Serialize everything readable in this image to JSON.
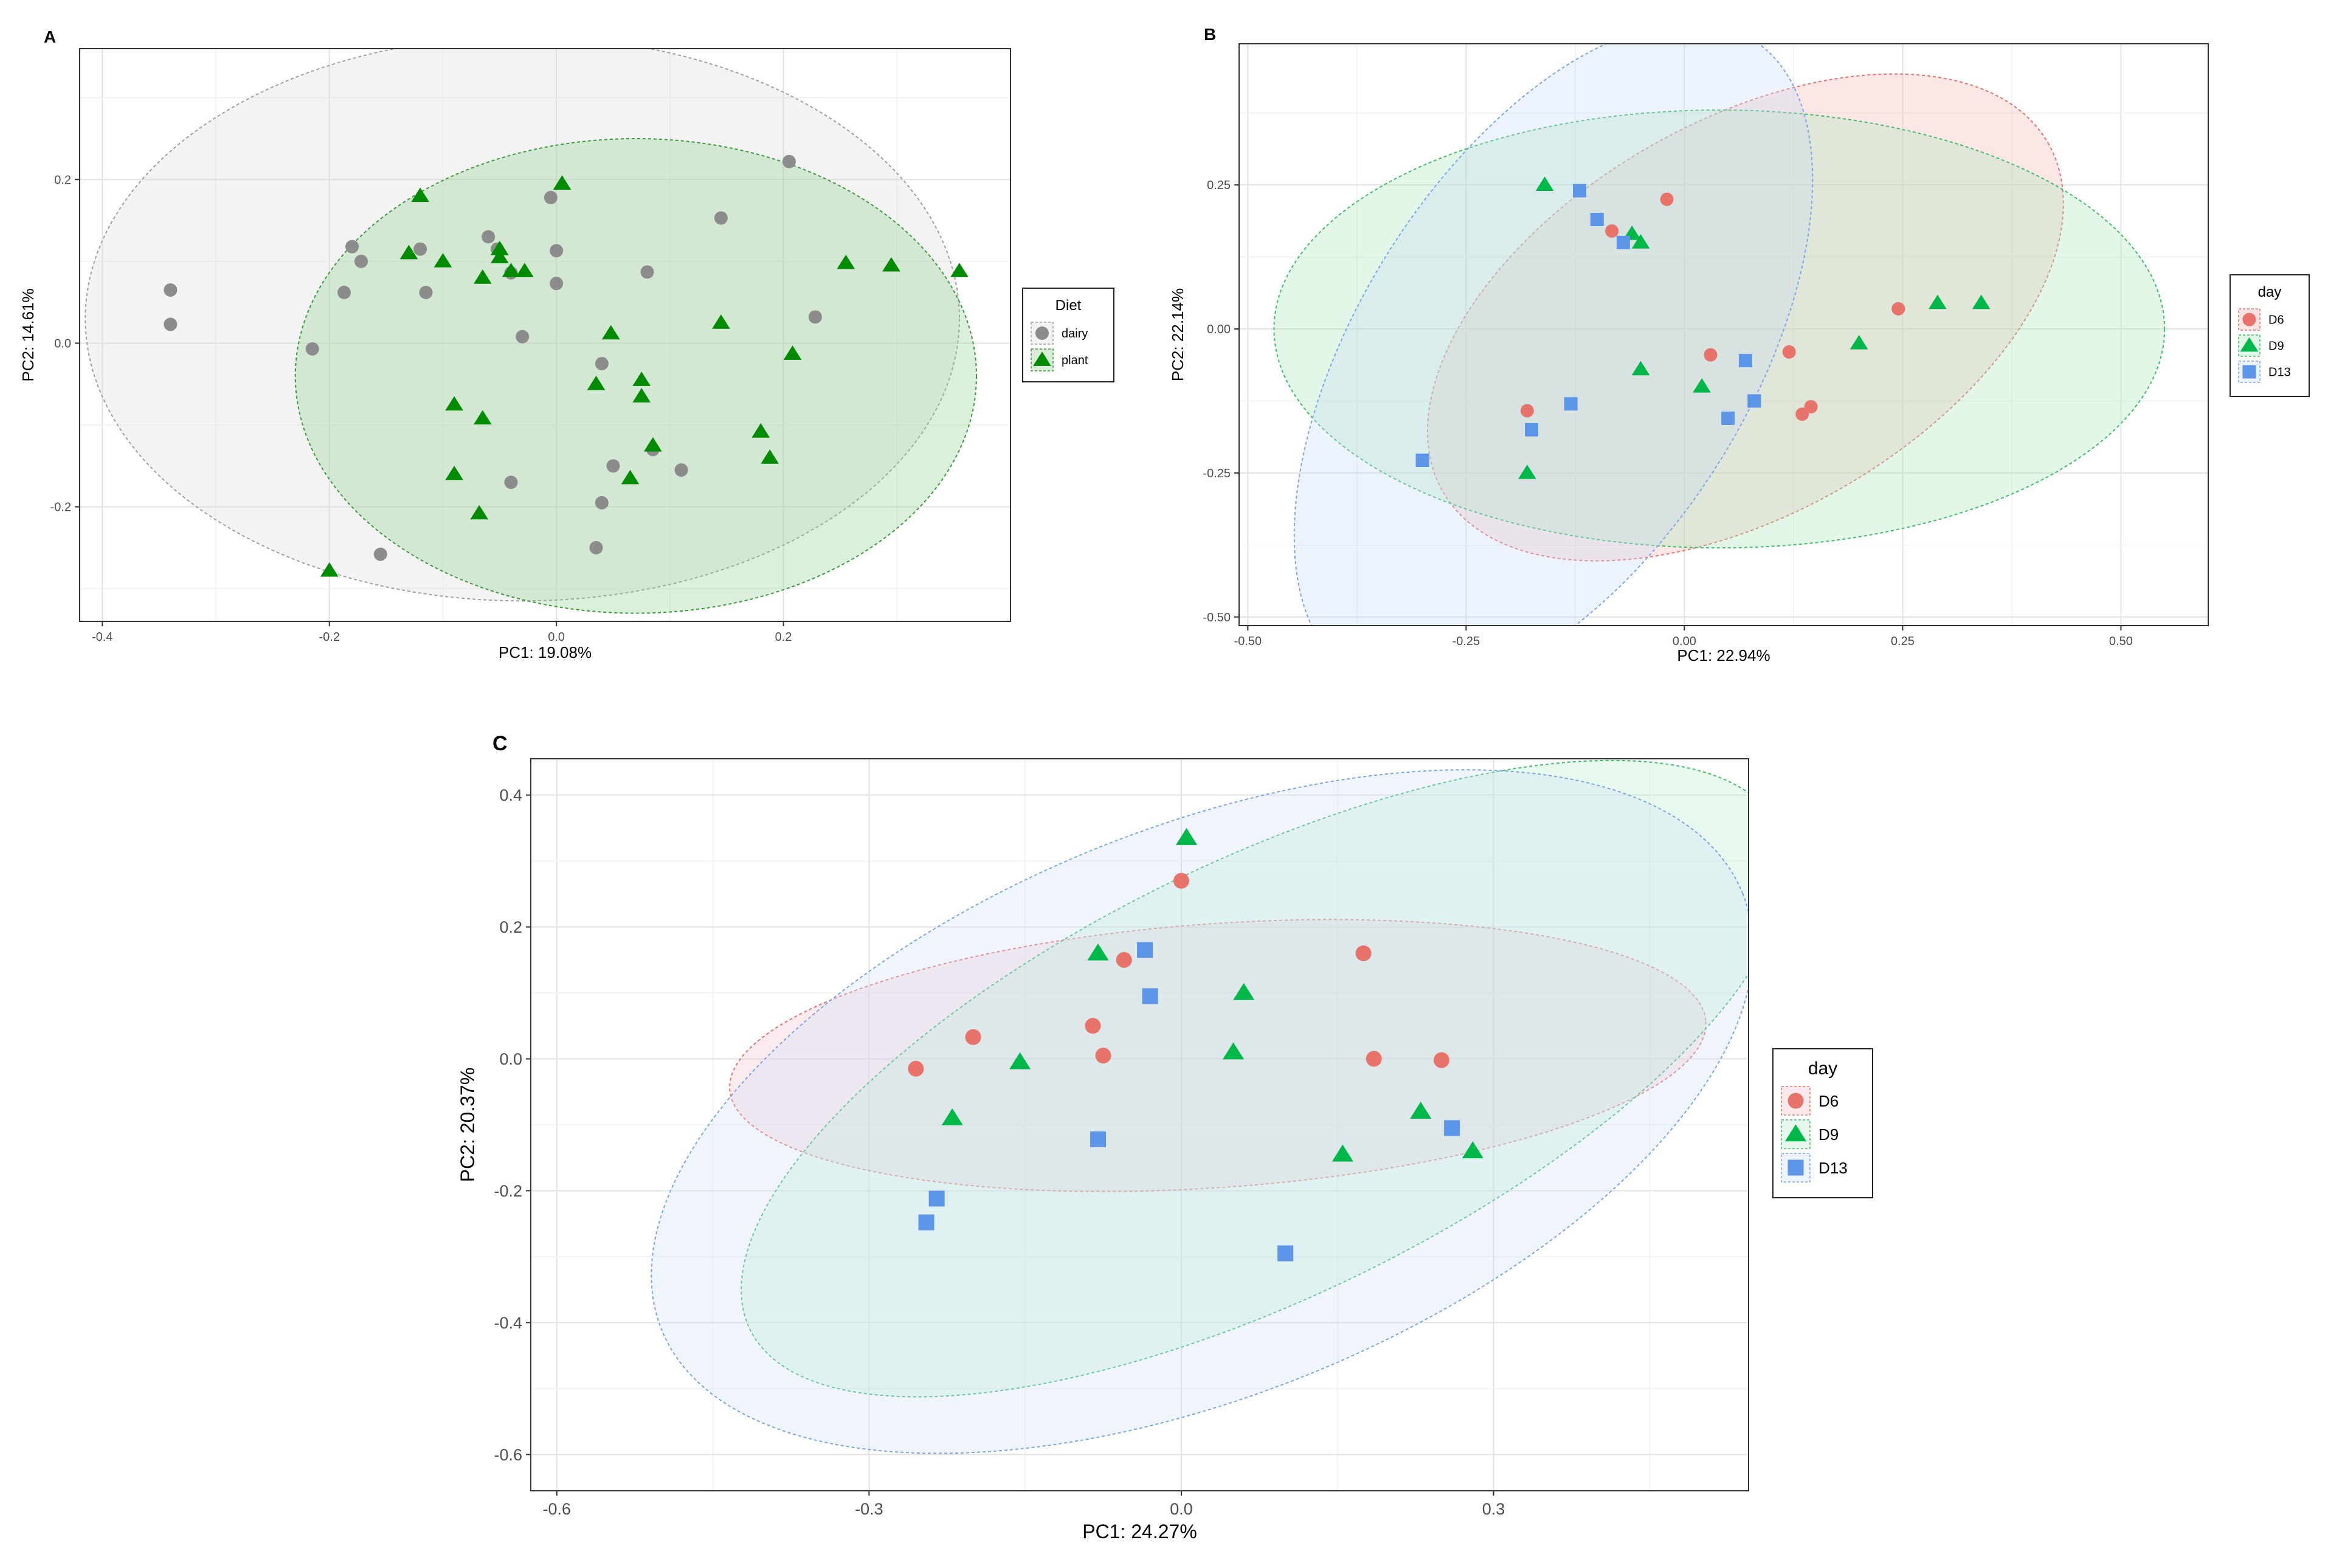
{
  "chart_data": [
    {
      "id": "A",
      "type": "scatter",
      "panel_label": "A",
      "xlabel": "PC1: 19.08%",
      "ylabel": "PC2: 14.61%",
      "xlim": [
        -0.42,
        0.4
      ],
      "ylim": [
        -0.34,
        0.36
      ],
      "xticks": [
        -0.4,
        -0.2,
        0.0,
        0.2
      ],
      "xtick_labels": [
        "-0.4",
        "-0.2",
        "0.0",
        "0.2"
      ],
      "yticks": [
        -0.2,
        0.0,
        0.2
      ],
      "ytick_labels": [
        "-0.2",
        "0.0",
        "0.2"
      ],
      "grid": true,
      "legend": {
        "title": "Diet",
        "position": "right"
      },
      "series": [
        {
          "name": "dairy",
          "marker": "circle",
          "color": "#8c8c8c",
          "fill": "#d9d9d9",
          "border": "#a0a0a0",
          "ellipse": {
            "cx": -0.03,
            "cy": 0.03,
            "rx": 0.385,
            "ry": 0.345,
            "angle": 0
          },
          "points": [
            [
              -0.34,
              0.065
            ],
            [
              -0.34,
              0.023
            ],
            [
              -0.215,
              -0.007
            ],
            [
              -0.18,
              0.118
            ],
            [
              -0.172,
              0.1
            ],
            [
              -0.187,
              0.062
            ],
            [
              -0.12,
              0.115
            ],
            [
              -0.115,
              0.062
            ],
            [
              -0.06,
              0.13
            ],
            [
              -0.052,
              0.115
            ],
            [
              -0.04,
              0.086
            ],
            [
              -0.03,
              0.008
            ],
            [
              -0.04,
              -0.17
            ],
            [
              -0.005,
              0.178
            ],
            [
              0.0,
              0.113
            ],
            [
              0.0,
              0.073
            ],
            [
              0.04,
              -0.025
            ],
            [
              0.05,
              -0.15
            ],
            [
              0.04,
              -0.195
            ],
            [
              0.08,
              0.087
            ],
            [
              0.085,
              -0.13
            ],
            [
              0.11,
              -0.155
            ],
            [
              0.145,
              0.153
            ],
            [
              0.205,
              0.222
            ],
            [
              0.228,
              0.032
            ],
            [
              0.035,
              -0.25
            ],
            [
              -0.155,
              -0.258
            ]
          ]
        },
        {
          "name": "plant",
          "marker": "triangle",
          "color": "#008b00",
          "fill": "#8fcf8f",
          "border": "#3c9c3c",
          "ellipse": {
            "cx": 0.07,
            "cy": -0.04,
            "rx": 0.3,
            "ry": 0.29,
            "angle": 0
          },
          "points": [
            [
              -0.12,
              0.18
            ],
            [
              0.005,
              0.195
            ],
            [
              -0.13,
              0.11
            ],
            [
              -0.1,
              0.1
            ],
            [
              -0.065,
              0.08
            ],
            [
              -0.05,
              0.115
            ],
            [
              -0.05,
              0.105
            ],
            [
              -0.04,
              0.088
            ],
            [
              -0.028,
              0.088
            ],
            [
              0.048,
              0.012
            ],
            [
              0.035,
              -0.05
            ],
            [
              0.075,
              -0.045
            ],
            [
              0.075,
              -0.065
            ],
            [
              -0.09,
              -0.075
            ],
            [
              -0.065,
              -0.092
            ],
            [
              -0.09,
              -0.16
            ],
            [
              -0.068,
              -0.208
            ],
            [
              0.065,
              -0.165
            ],
            [
              0.085,
              -0.125
            ],
            [
              0.145,
              0.025
            ],
            [
              0.18,
              -0.108
            ],
            [
              0.188,
              -0.14
            ],
            [
              0.208,
              -0.013
            ],
            [
              0.255,
              0.098
            ],
            [
              0.295,
              0.095
            ],
            [
              0.355,
              0.088
            ],
            [
              -0.2,
              -0.278
            ]
          ]
        }
      ]
    },
    {
      "id": "B",
      "type": "scatter",
      "panel_label": "B",
      "xlabel": "PC1: 22.94%",
      "ylabel": "PC2: 22.14%",
      "xlim": [
        -0.51,
        0.6
      ],
      "ylim": [
        -0.515,
        0.495
      ],
      "xticks": [
        -0.5,
        -0.25,
        0.0,
        0.25,
        0.5
      ],
      "xtick_labels": [
        "-0.50",
        "-0.25",
        "0.00",
        "0.25",
        "0.50"
      ],
      "yticks": [
        -0.5,
        -0.25,
        0.0,
        0.25
      ],
      "ytick_labels": [
        "-0.50",
        "-0.25",
        "0.00",
        "0.25"
      ],
      "grid": true,
      "legend": {
        "title": "day",
        "position": "right"
      },
      "series": [
        {
          "name": "D6",
          "marker": "circle",
          "color": "#e8736a",
          "fill": "#f7b3b3",
          "border": "#e8736a",
          "ellipse": {
            "cx": 0.07,
            "cy": 0.02,
            "rx": 0.4,
            "ry": 0.34,
            "angle": -30
          },
          "points": [
            [
              -0.1,
              0.19
            ],
            [
              -0.083,
              0.17
            ],
            [
              -0.02,
              0.225
            ],
            [
              0.03,
              -0.045
            ],
            [
              0.12,
              -0.04
            ],
            [
              0.135,
              -0.148
            ],
            [
              0.145,
              -0.135
            ],
            [
              0.245,
              0.035
            ],
            [
              -0.18,
              -0.142
            ]
          ]
        },
        {
          "name": "D9",
          "marker": "triangle",
          "color": "#00b84a",
          "fill": "#a5e6b9",
          "border": "#3fbf6a",
          "ellipse": {
            "cx": 0.04,
            "cy": 0.0,
            "rx": 0.51,
            "ry": 0.38,
            "angle": 0
          },
          "points": [
            [
              -0.16,
              0.25
            ],
            [
              -0.06,
              0.165
            ],
            [
              -0.05,
              0.15
            ],
            [
              -0.05,
              -0.07
            ],
            [
              0.02,
              -0.1
            ],
            [
              0.2,
              -0.025
            ],
            [
              0.29,
              0.045
            ],
            [
              0.34,
              0.045
            ],
            [
              -0.18,
              -0.25
            ]
          ]
        },
        {
          "name": "D13",
          "marker": "square",
          "color": "#5d95e8",
          "fill": "#c7d9f7",
          "border": "#7aa6e8",
          "ellipse": {
            "cx": -0.15,
            "cy": -0.05,
            "rx": 0.43,
            "ry": 0.34,
            "angle": -58
          },
          "points": [
            [
              -0.12,
              0.24
            ],
            [
              -0.1,
              0.19
            ],
            [
              -0.07,
              0.15
            ],
            [
              0.07,
              -0.055
            ],
            [
              0.08,
              -0.125
            ],
            [
              0.05,
              -0.155
            ],
            [
              -0.13,
              -0.13
            ],
            [
              -0.175,
              -0.175
            ],
            [
              -0.3,
              -0.228
            ]
          ]
        }
      ]
    },
    {
      "id": "C",
      "type": "scatter",
      "panel_label": "C",
      "xlabel": "PC1: 24.27%",
      "ylabel": "PC2: 20.37%",
      "xlim": [
        -0.625,
        0.545
      ],
      "ylim": [
        -0.655,
        0.455
      ],
      "xticks": [
        -0.6,
        -0.3,
        0.0,
        0.3
      ],
      "xtick_labels": [
        "-0.6",
        "-0.3",
        "0.0",
        "0.3"
      ],
      "yticks": [
        -0.6,
        -0.4,
        -0.2,
        0.0,
        0.2,
        0.4
      ],
      "ytick_labels": [
        "-0.6",
        "-0.4",
        "-0.2",
        "0.0",
        "0.2",
        "0.4"
      ],
      "grid": true,
      "legend": {
        "title": "day",
        "position": "right"
      },
      "series": [
        {
          "name": "D6",
          "marker": "circle",
          "color": "#e8736a",
          "fill": "#f2c0cc",
          "border": "#e8736a",
          "ellipse": {
            "cx": 0.035,
            "cy": 0.005,
            "rx": 0.47,
            "ry": 0.2,
            "angle": -4
          },
          "points": [
            [
              0.0,
              0.27
            ],
            [
              -0.055,
              0.15
            ],
            [
              -0.085,
              0.05
            ],
            [
              -0.075,
              0.005
            ],
            [
              -0.2,
              0.033
            ],
            [
              -0.255,
              -0.015
            ],
            [
              0.175,
              0.16
            ],
            [
              0.185,
              0.0
            ],
            [
              0.25,
              -0.002
            ]
          ]
        },
        {
          "name": "D9",
          "marker": "triangle",
          "color": "#00b84a",
          "fill": "#b8ecc8",
          "border": "#3fbf6a",
          "ellipse": {
            "cx": 0.08,
            "cy": -0.03,
            "rx": 0.55,
            "ry": 0.33,
            "angle": -26
          },
          "points": [
            [
              0.005,
              0.335
            ],
            [
              -0.08,
              0.16
            ],
            [
              0.06,
              0.1
            ],
            [
              -0.155,
              -0.005
            ],
            [
              0.05,
              0.01
            ],
            [
              -0.22,
              -0.09
            ],
            [
              0.23,
              -0.08
            ],
            [
              0.155,
              -0.145
            ],
            [
              0.28,
              -0.14
            ]
          ]
        },
        {
          "name": "D13",
          "marker": "square",
          "color": "#5d95e8",
          "fill": "#cfe0f8",
          "border": "#7aa6e8",
          "ellipse": {
            "cx": 0.02,
            "cy": -0.08,
            "rx": 0.56,
            "ry": 0.43,
            "angle": -22
          },
          "points": [
            [
              -0.035,
              0.165
            ],
            [
              -0.03,
              0.095
            ],
            [
              -0.08,
              -0.122
            ],
            [
              -0.235,
              -0.212
            ],
            [
              -0.245,
              -0.248
            ],
            [
              0.1,
              -0.295
            ],
            [
              0.26,
              -0.105
            ]
          ]
        }
      ]
    }
  ]
}
